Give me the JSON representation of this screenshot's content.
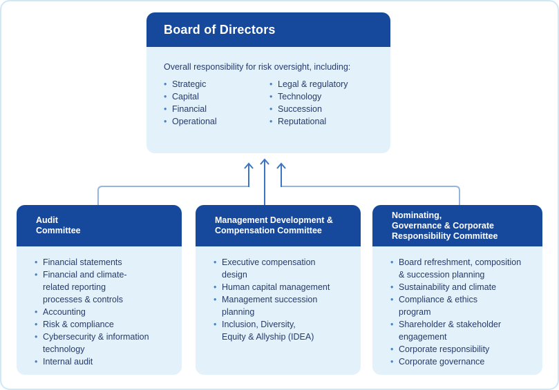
{
  "colors": {
    "header-blue": "#16489c",
    "panel-blue": "#e3f1fa",
    "text-navy": "#253a6d",
    "bullet-blue": "#4a80c4",
    "rail-blue": "#96b5de",
    "arrow-blue": "#3b74c4",
    "border-blue": "#cfe8f7"
  },
  "board": {
    "title": "Board of Directors",
    "intro": "Overall responsibility for risk oversight, including:",
    "bullets_col1": [
      "Strategic",
      "Capital",
      "Financial",
      "Operational"
    ],
    "bullets_col2": [
      "Legal & regulatory",
      "Technology",
      "Succession",
      "Reputational"
    ]
  },
  "committees": [
    {
      "title": "Audit\nCommittee",
      "items": [
        "Financial statements",
        "Financial and climate-\nrelated reporting\nprocesses & controls",
        "Accounting",
        "Risk & compliance",
        "Cybersecurity & information\ntechnology",
        "Internal audit"
      ]
    },
    {
      "title": "Management Development &\nCompensation Committee",
      "items": [
        "Executive compensation\ndesign",
        "Human capital management",
        "Management succession\nplanning",
        "Inclusion, Diversity,\nEquity & Allyship (IDEA)"
      ]
    },
    {
      "title": "Nominating,\nGovernance & Corporate\nResponsibility Committee",
      "items": [
        "Board refreshment, composition\n& succession planning",
        "Sustainability and climate",
        "Compliance & ethics\nprogram",
        "Shareholder & stakeholder\nengagement",
        "Corporate responsibility",
        "Corporate governance"
      ]
    }
  ]
}
